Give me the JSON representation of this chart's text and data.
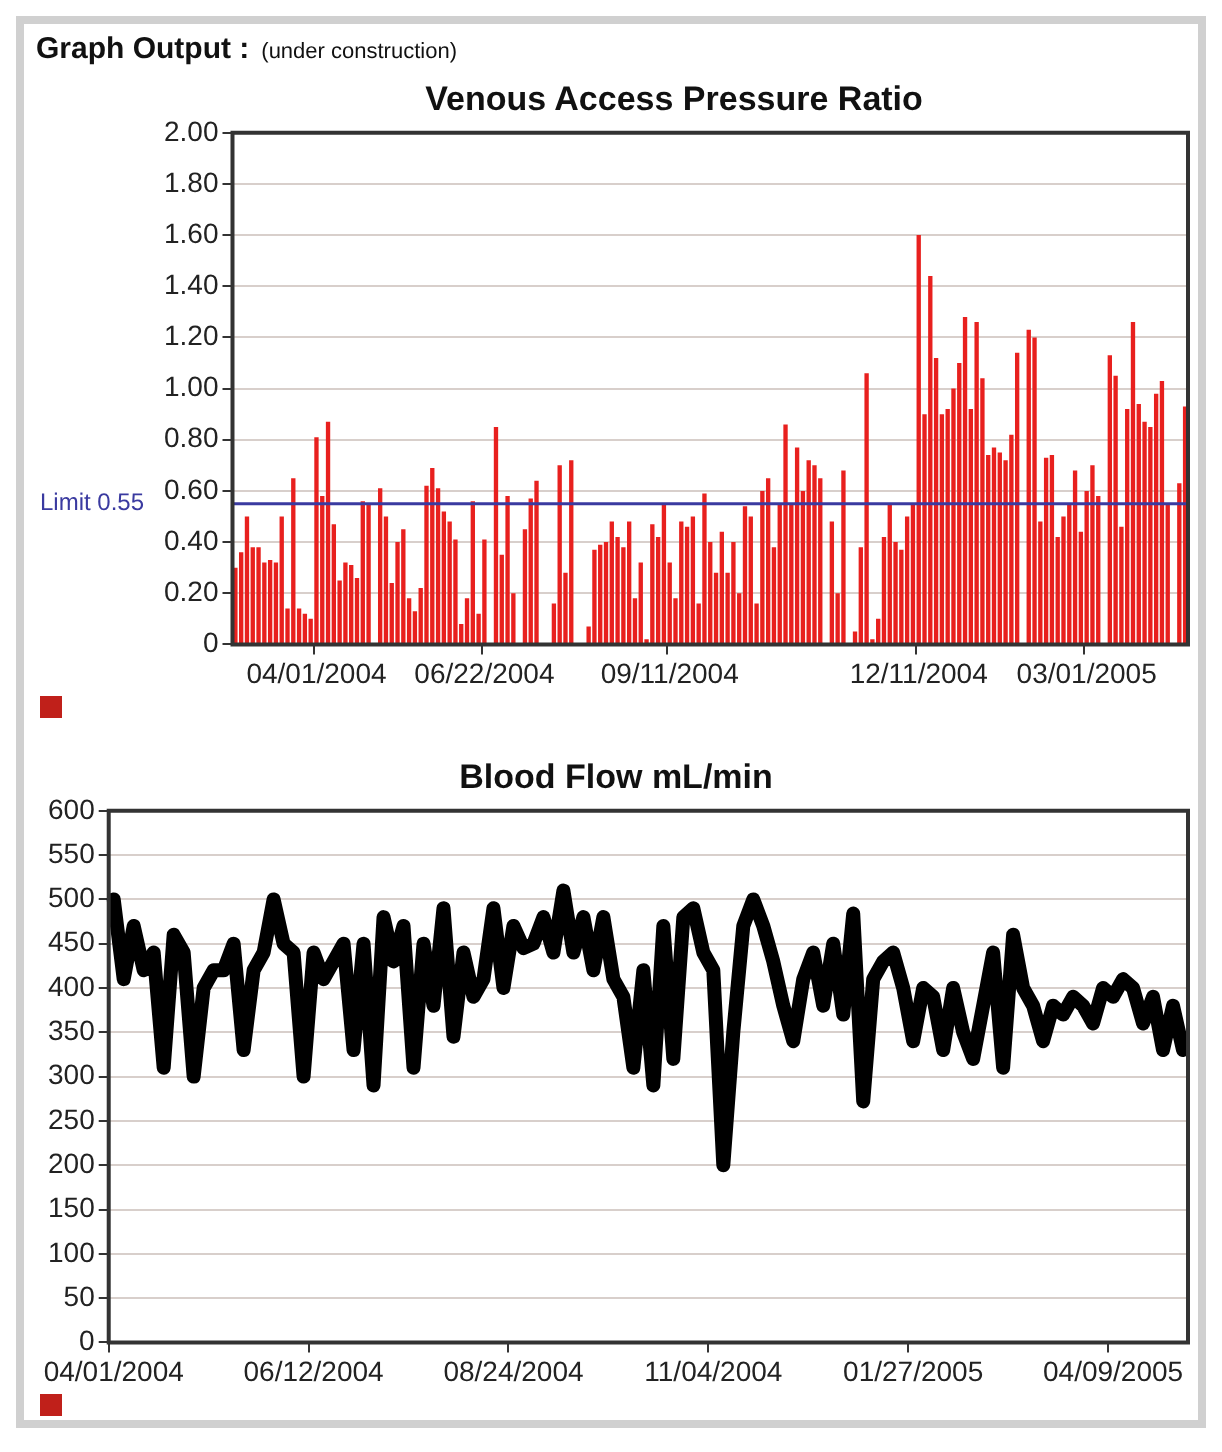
{
  "chart_data": [
    {
      "type": "bar",
      "title": "Venous Access Pressure Ratio",
      "annotations": [
        "Graph Output :",
        "(under construction)"
      ],
      "categories": [
        null,
        null,
        null,
        null,
        null,
        null,
        null,
        null,
        null,
        null,
        null,
        null,
        null,
        null,
        "04/01/2004",
        null,
        null,
        null,
        null,
        null,
        null,
        null,
        null,
        null,
        null,
        null,
        null,
        null,
        null,
        null,
        null,
        null,
        null,
        null,
        null,
        null,
        null,
        null,
        null,
        null,
        null,
        null,
        null,
        "06/22/2004",
        null,
        null,
        null,
        null,
        null,
        null,
        null,
        null,
        null,
        null,
        null,
        null,
        null,
        null,
        null,
        null,
        null,
        null,
        null,
        null,
        null,
        null,
        null,
        null,
        null,
        null,
        null,
        null,
        null,
        null,
        null,
        "09/11/2004",
        null,
        null,
        null,
        null,
        null,
        null,
        null,
        null,
        null,
        null,
        null,
        null,
        null,
        null,
        null,
        null,
        null,
        null,
        null,
        null,
        null,
        null,
        null,
        null,
        null,
        null,
        null,
        null,
        null,
        null,
        null,
        null,
        null,
        null,
        null,
        null,
        null,
        null,
        null,
        null,
        null,
        null,
        "12/11/2004",
        null,
        null,
        null,
        null,
        null,
        null,
        null,
        null,
        null,
        null,
        null,
        null,
        null,
        null,
        null,
        null,
        null,
        null,
        null,
        null,
        null,
        null,
        null,
        null,
        null,
        null,
        null,
        null,
        "03/01/2005",
        null,
        null,
        null,
        null,
        null,
        null,
        null,
        null,
        null,
        null,
        null,
        null,
        null,
        null,
        null,
        null,
        null
      ],
      "series": [
        {
          "color": "#e8201e",
          "values": [
            0.3,
            0.36,
            0.5,
            0.38,
            0.38,
            0.32,
            0.33,
            0.32,
            0.5,
            0.14,
            0.65,
            0.14,
            0.12,
            0.1,
            0.81,
            0.58,
            0.87,
            0.47,
            0.25,
            0.32,
            0.31,
            0.26,
            0.56,
            0.55,
            0,
            0.61,
            0.5,
            0.24,
            0.4,
            0.45,
            0.18,
            0.13,
            0.22,
            0.62,
            0.69,
            0.61,
            0.52,
            0.48,
            0.41,
            0.08,
            0.18,
            0.56,
            0.12,
            0.41,
            0,
            0.85,
            0.35,
            0.58,
            0.2,
            0,
            0.45,
            0.57,
            0.64,
            0,
            0,
            0.16,
            0.7,
            0.28,
            0.72,
            0,
            0,
            0.07,
            0.37,
            0.39,
            0.4,
            0.48,
            0.42,
            0.38,
            0.48,
            0.18,
            0.32,
            0.02,
            0.47,
            0.42,
            0.55,
            0.32,
            0.18,
            0.48,
            0.46,
            0.5,
            0.16,
            0.59,
            0.4,
            0.28,
            0.44,
            0.28,
            0.4,
            0.2,
            0.54,
            0.5,
            0.16,
            0.6,
            0.65,
            0.38,
            0.55,
            0.86,
            0.55,
            0.77,
            0.6,
            0.72,
            0.7,
            0.65,
            0,
            0.48,
            0.2,
            0.68,
            0,
            0.05,
            0.38,
            1.06,
            0.02,
            0.1,
            0.42,
            0.55,
            0.4,
            0.37,
            0.5,
            0.55,
            1.6,
            0.9,
            1.44,
            1.12,
            0.9,
            0.92,
            1.0,
            1.1,
            1.28,
            0.92,
            1.26,
            1.04,
            0.74,
            0.77,
            0.75,
            0.72,
            0.82,
            1.14,
            0,
            1.23,
            1.2,
            0.48,
            0.73,
            0.74,
            0.42,
            0.5,
            0.55,
            0.68,
            0.44,
            0.6,
            0.7,
            0.58,
            0,
            1.13,
            1.05,
            0.46,
            0.92,
            1.26,
            0.94,
            0.87,
            0.85,
            0.98,
            1.03,
            0.55,
            0,
            0.63,
            0.93
          ]
        }
      ],
      "ylim": [
        0,
        2
      ],
      "yticks": [
        0,
        {
          "value": 0.2,
          "label": "0.20"
        },
        {
          "value": 0.4,
          "label": "0.40"
        },
        {
          "value": 0.6,
          "label": "0.60"
        },
        {
          "value": 0.8,
          "label": "0.80"
        },
        {
          "value": 1,
          "label": "1.00"
        },
        {
          "value": 1.2,
          "label": "1.20"
        },
        {
          "value": 1.4,
          "label": "1.40"
        },
        {
          "value": 1.6,
          "label": "1.60"
        },
        {
          "value": 1.8,
          "label": "1.80"
        },
        {
          "value": 2,
          "label": "2.00"
        }
      ],
      "ref_lines": [
        {
          "axis": "y",
          "value": 0.55,
          "label": "Limit 0.55",
          "color": "#3a3aa0"
        }
      ],
      "grid": "y"
    },
    {
      "type": "line",
      "title": "Blood Flow mL/min",
      "categories": [
        "04/01/2004",
        null,
        null,
        null,
        null,
        null,
        null,
        null,
        null,
        null,
        null,
        null,
        null,
        null,
        null,
        null,
        null,
        null,
        null,
        null,
        "06/12/2004",
        null,
        null,
        null,
        null,
        null,
        null,
        null,
        null,
        null,
        null,
        null,
        null,
        null,
        null,
        null,
        null,
        null,
        null,
        null,
        "08/24/2004",
        null,
        null,
        null,
        null,
        null,
        null,
        null,
        null,
        null,
        null,
        null,
        null,
        null,
        null,
        null,
        null,
        null,
        null,
        null,
        "11/04/2004",
        null,
        null,
        null,
        null,
        null,
        null,
        null,
        null,
        null,
        null,
        null,
        null,
        null,
        null,
        null,
        null,
        null,
        null,
        null,
        "01/27/2005",
        null,
        null,
        null,
        null,
        null,
        null,
        null,
        null,
        null,
        null,
        null,
        null,
        null,
        null,
        null,
        null,
        null,
        null,
        null,
        "04/09/2005",
        null,
        null,
        null,
        null,
        null,
        null,
        null
      ],
      "series": [
        {
          "color": "#000000",
          "values": [
            500,
            410,
            470,
            420,
            440,
            310,
            460,
            440,
            300,
            400,
            420,
            420,
            450,
            330,
            420,
            440,
            500,
            450,
            440,
            300,
            440,
            410,
            430,
            450,
            330,
            450,
            290,
            480,
            430,
            470,
            310,
            450,
            380,
            490,
            345,
            440,
            390,
            410,
            490,
            400,
            470,
            445,
            450,
            480,
            440,
            510,
            440,
            480,
            420,
            480,
            410,
            390,
            310,
            420,
            290,
            470,
            320,
            480,
            490,
            440,
            420,
            200,
            350,
            470,
            500,
            470,
            430,
            380,
            340,
            410,
            440,
            380,
            450,
            370,
            484,
            272,
            410,
            430,
            440,
            400,
            340,
            400,
            390,
            330,
            400,
            350,
            320,
            380,
            440,
            310,
            460,
            400,
            380,
            340,
            380,
            370,
            390,
            380,
            360,
            400,
            390,
            410,
            400,
            360,
            390,
            330,
            380,
            330
          ]
        }
      ],
      "ylim": [
        0,
        600
      ],
      "yticks": [
        0,
        50,
        100,
        150,
        200,
        250,
        300,
        350,
        400,
        450,
        500,
        550,
        600
      ],
      "grid": "y"
    }
  ]
}
